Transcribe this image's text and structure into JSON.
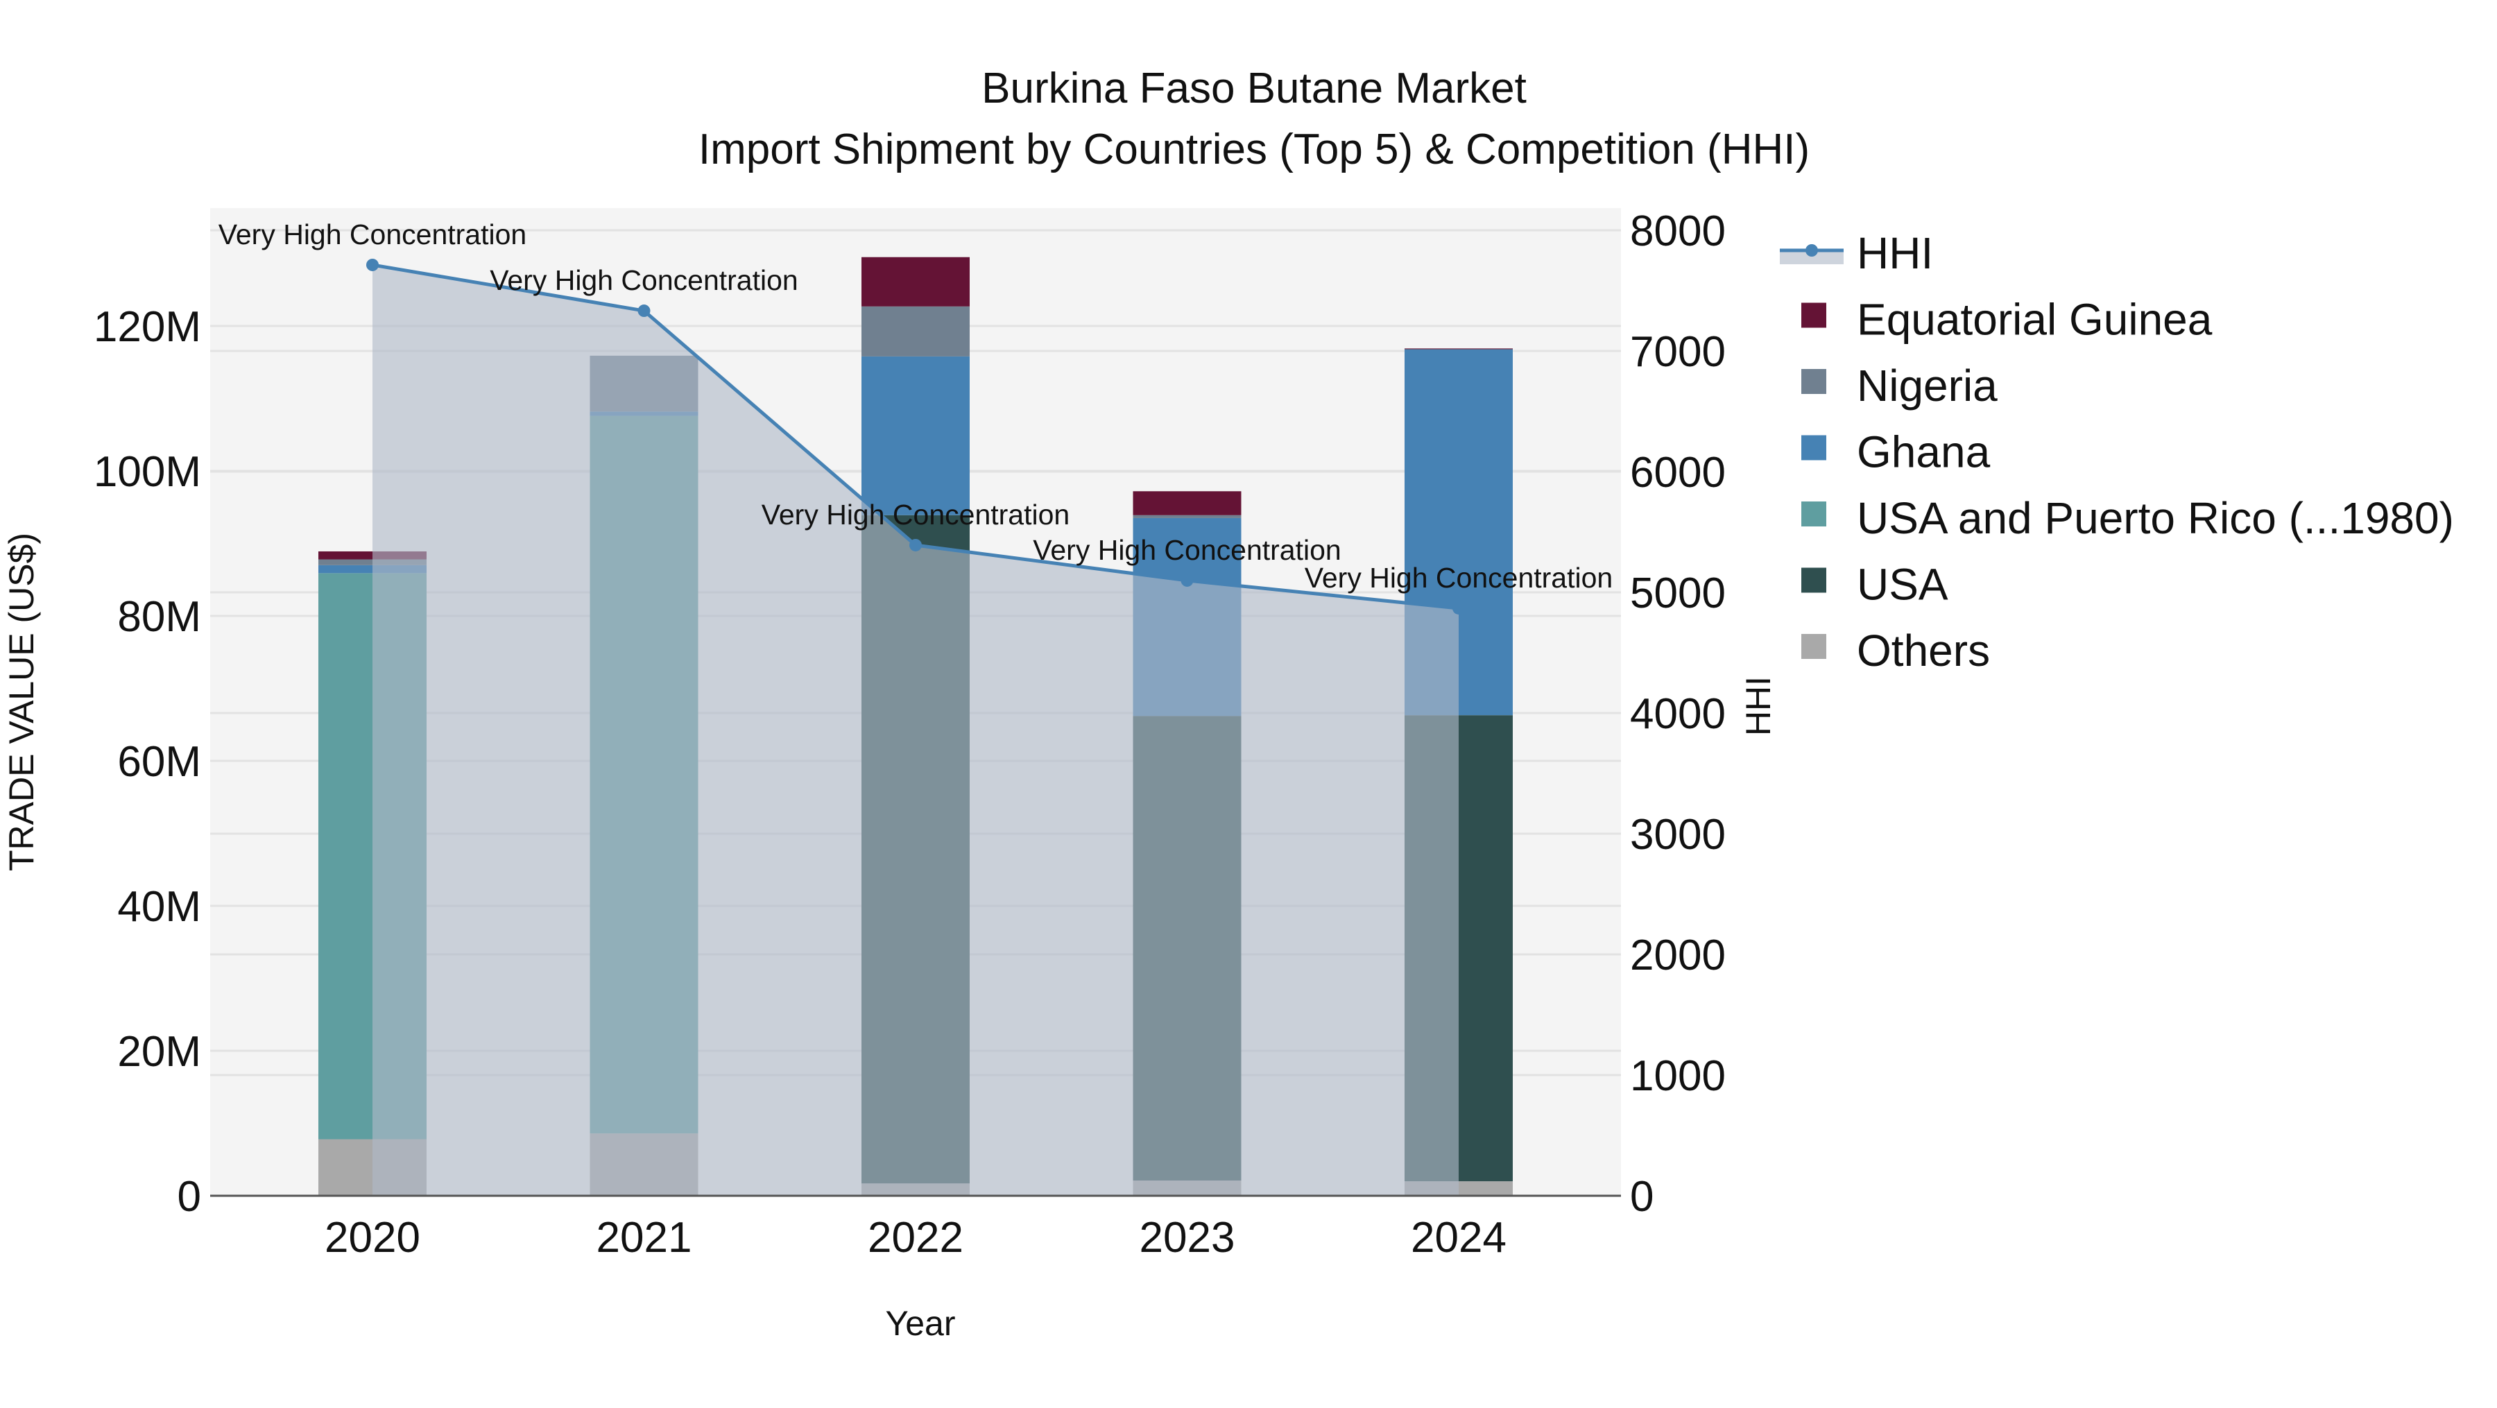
{
  "title": {
    "line1": "Burkina Faso Butane Market",
    "line2": "Import Shipment by Countries (Top 5) & Competition (HHI)"
  },
  "axes": {
    "x_title": "Year",
    "y_left_title": "TRADE VALUE (US$)",
    "y_right_title": "HHI",
    "y_left_ticks": [
      "0",
      "20M",
      "40M",
      "60M",
      "80M",
      "100M",
      "120M"
    ],
    "y_right_ticks": [
      "0",
      "1000",
      "2000",
      "3000",
      "4000",
      "5000",
      "6000",
      "7000",
      "8000"
    ]
  },
  "legend": [
    {
      "key": "hhi",
      "label": "HHI",
      "type": "line",
      "color": "#4682B4"
    },
    {
      "key": "equatorial_guinea",
      "label": "Equatorial Guinea",
      "type": "bar",
      "color": "#641335"
    },
    {
      "key": "nigeria",
      "label": "Nigeria",
      "type": "bar",
      "color": "#708090"
    },
    {
      "key": "ghana",
      "label": "Ghana",
      "type": "bar",
      "color": "#4682B4"
    },
    {
      "key": "usa_pr",
      "label": "USA and Puerto Rico (...1980)",
      "type": "bar",
      "color": "#5F9EA0"
    },
    {
      "key": "usa",
      "label": "USA",
      "type": "bar",
      "color": "#2F4F4F"
    },
    {
      "key": "others",
      "label": "Others",
      "type": "bar",
      "color": "#A9A9A9"
    }
  ],
  "colors": {
    "plot_bg": "#F4F4F4",
    "grid": "#E2E2E2",
    "hhi_line": "#4682B4",
    "hhi_fill": "rgba(176,186,200,0.62)",
    "axis_line": "#555555"
  },
  "chart_data": {
    "type": "bar",
    "subtype": "stacked bar with line on secondary axis",
    "title": "Burkina Faso Butane Market — Import Shipment by Countries (Top 5) & Competition (HHI)",
    "xlabel": "Year",
    "ylabel": "TRADE VALUE (US$)",
    "y2label": "HHI",
    "categories": [
      "2020",
      "2021",
      "2022",
      "2023",
      "2024"
    ],
    "ylim": [
      0,
      131
    ],
    "y2lim": [
      0,
      8200
    ],
    "units": "US$ millions",
    "series": [
      {
        "name": "Others",
        "key": "others",
        "values": [
          7.8,
          8.6,
          1.7,
          2.1,
          2.0
        ]
      },
      {
        "name": "USA",
        "key": "usa",
        "values": [
          0,
          0,
          92.2,
          64.1,
          64.3
        ]
      },
      {
        "name": "USA and Puerto Rico (...1980)",
        "key": "usa_pr",
        "values": [
          78.1,
          99.0,
          0,
          0,
          0
        ]
      },
      {
        "name": "Ghana",
        "key": "ghana",
        "values": [
          1.1,
          0.6,
          21.9,
          27.3,
          50.5
        ]
      },
      {
        "name": "Nigeria",
        "key": "nigeria",
        "values": [
          0.8,
          7.7,
          6.9,
          0.4,
          0.05
        ]
      },
      {
        "name": "Equatorial Guinea",
        "key": "equatorial_guinea",
        "values": [
          1.1,
          0,
          6.8,
          3.3,
          0.05
        ]
      }
    ],
    "line_series": {
      "name": "HHI",
      "axis": "right",
      "values": [
        7713,
        7333,
        5391,
        5098,
        4868
      ],
      "annotations": [
        "Very High Concentration",
        "Very High Concentration",
        "Very High Concentration",
        "Very High Concentration",
        "Very High Concentration"
      ]
    },
    "grid": true,
    "legend_position": "right"
  }
}
